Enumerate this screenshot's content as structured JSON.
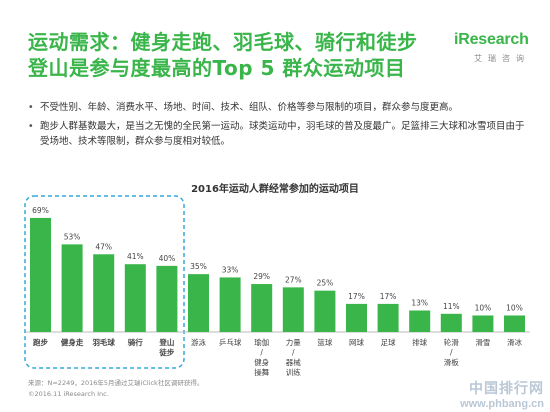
{
  "header": {
    "title_line1": "运动需求：健身走跑、羽毛球、骑行和徒步",
    "title_line2": "登山是参与度最高的Top 5 群众运动项目"
  },
  "logo": {
    "brand_i": "i",
    "brand_rest": "Research",
    "subtitle": "艾瑞咨询"
  },
  "bullets": [
    "不受性别、年龄、消费水平、场地、时间、技术、组队、价格等参与限制的项目，群众参与度更高。",
    "跑步人群基数最大，是当之无愧的全民第一运动。球类运动中，羽毛球的普及度最广。足篮排三大球和冰雪项目由于受场地、技术等限制，群众参与度相对较低。"
  ],
  "chart_data": {
    "type": "bar",
    "title": "2016年运动人群经常参加的运动项目",
    "categories": [
      "跑步",
      "健身走",
      "羽毛球",
      "骑行",
      "登山徒步",
      "游泳",
      "乒乓球",
      "瑜伽/健身操舞",
      "力量/器械训练",
      "篮球",
      "网球",
      "足球",
      "排球",
      "轮滑/滑板",
      "滑雪",
      "滑冰"
    ],
    "values": [
      69,
      53,
      47,
      41,
      40,
      35,
      33,
      29,
      27,
      25,
      17,
      17,
      13,
      11,
      10,
      10
    ],
    "value_suffix": "%",
    "ylim": [
      0,
      75
    ],
    "grid": false,
    "highlight_top": 5,
    "colors": {
      "bar": "#39B54A",
      "highlight_border": "#35A9D8",
      "axis": "#bbbbbb",
      "label": "#444444"
    }
  },
  "footer": {
    "source": "来源：N=2249，2016年5月通过艾瑞iClick社区调研获得。",
    "copyright": "©2016.11 iResearch Inc."
  },
  "watermark": {
    "line1": "中国排行网",
    "line2": "www.phbang.cn"
  }
}
